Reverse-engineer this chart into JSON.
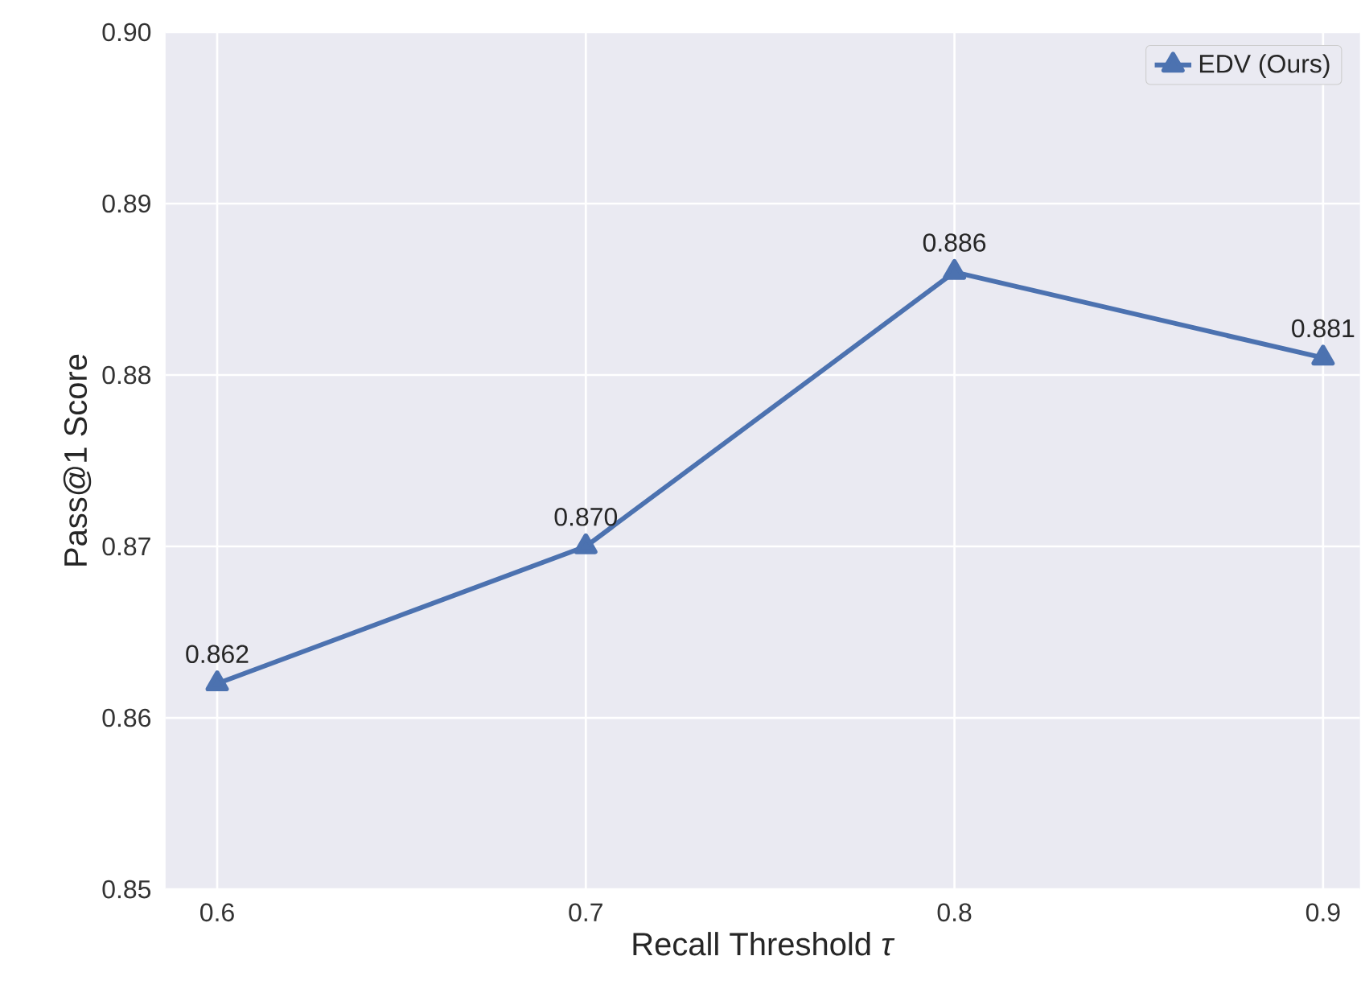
{
  "chart_data": {
    "type": "line",
    "xlabel": "Recall Threshold *τ*",
    "ylabel": "Pass@1 Score",
    "x": [
      0.6,
      0.7,
      0.8,
      0.9
    ],
    "series": [
      {
        "name": "EDV (Ours)",
        "color": "#4c72b0",
        "values": [
          0.862,
          0.87,
          0.886,
          0.881
        ],
        "value_labels": [
          "0.862",
          "0.870",
          "0.886",
          "0.881"
        ]
      }
    ],
    "xlim": [
      0.586,
      0.91
    ],
    "ylim": [
      0.85,
      0.9
    ],
    "xticks": [
      0.6,
      0.7,
      0.8,
      0.9
    ],
    "yticks": [
      0.85,
      0.86,
      0.87,
      0.88,
      0.89,
      {
        "value": 0.9,
        "label": "0.90"
      }
    ],
    "grid": true,
    "legend": "top right",
    "marker": "triangle",
    "line_style": "solid"
  }
}
